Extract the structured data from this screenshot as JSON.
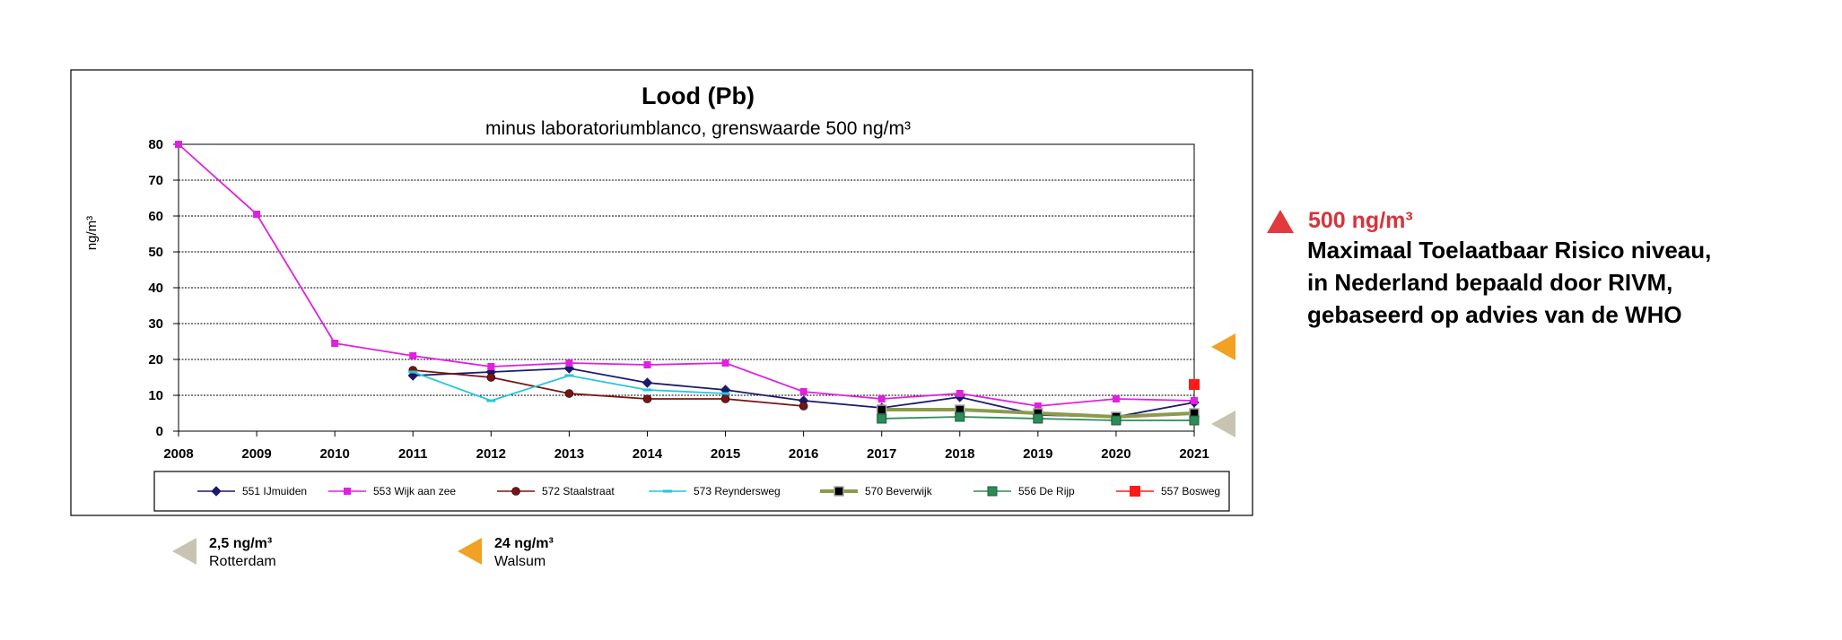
{
  "chart_data": {
    "type": "line",
    "title": "Lood (Pb)",
    "subtitle": "minus laboratoriumblanco, grenswaarde 500 ng/m³",
    "xlabel": "",
    "ylabel": "ng/m³",
    "ylim": [
      0,
      80
    ],
    "y_ticks": [
      "0",
      "10",
      "20",
      "30",
      "40",
      "50",
      "60",
      "70",
      "80"
    ],
    "categories": [
      "2008",
      "2009",
      "2010",
      "2011",
      "2012",
      "2013",
      "2014",
      "2015",
      "2016",
      "2017",
      "2018",
      "2019",
      "2020",
      "2021"
    ],
    "grid": true,
    "legend_position": "bottom",
    "series": [
      {
        "name": "551 IJmuiden",
        "color": "#1c1a6b",
        "marker": "diamond",
        "values": [
          null,
          null,
          null,
          15.5,
          16.5,
          17.5,
          13.5,
          11.5,
          8.5,
          6.5,
          9.5,
          4.5,
          4,
          8
        ]
      },
      {
        "name": "553 Wijk aan zee",
        "color": "#e020e0",
        "marker": "square",
        "values": [
          80,
          60.5,
          24.5,
          21,
          18,
          19,
          18.5,
          19,
          11,
          9,
          10.5,
          7,
          9,
          8.5
        ]
      },
      {
        "name": "572 Staalstraat",
        "color": "#7a1414",
        "marker": "circle",
        "values": [
          null,
          null,
          null,
          17,
          15,
          10.5,
          9,
          9,
          7,
          null,
          null,
          null,
          null,
          null
        ]
      },
      {
        "name": "573 Reyndersweg",
        "color": "#26c6da",
        "marker": "dash",
        "values": [
          null,
          null,
          null,
          16.5,
          8.5,
          15.5,
          11.5,
          10.5,
          null,
          null,
          null,
          null,
          null,
          null
        ]
      },
      {
        "name": "570 Beverwijk",
        "color": "#8c9a4c",
        "marker": "bigsquare",
        "values": [
          null,
          null,
          null,
          null,
          null,
          null,
          null,
          null,
          null,
          6,
          6,
          5,
          4,
          5
        ]
      },
      {
        "name": "556 De Rijp",
        "color": "#2e8b57",
        "marker": "square-teal",
        "values": [
          null,
          null,
          null,
          null,
          null,
          null,
          null,
          null,
          null,
          3.5,
          4,
          3.5,
          3,
          3
        ]
      },
      {
        "name": "557 Bosweg",
        "color": "#ff1a1a",
        "marker": "square-red",
        "values": [
          null,
          null,
          null,
          null,
          null,
          null,
          null,
          null,
          null,
          null,
          null,
          null,
          null,
          13
        ]
      }
    ]
  },
  "reference_note": {
    "value": "500 ng/m³",
    "lines": [
      "Maximaal Toelaatbaar Risico niveau,",
      "in Nederland bepaald door RIVM,",
      "gebaseerd op advies van de WHO"
    ],
    "color": "#d6343b"
  },
  "references": [
    {
      "value": "2,5 ng/m³",
      "location": "Rotterdam",
      "color": "#c8c4b4",
      "level": 2.5
    },
    {
      "value": "24 ng/m³",
      "location": "Walsum",
      "color": "#f2a124",
      "level": 24
    }
  ]
}
